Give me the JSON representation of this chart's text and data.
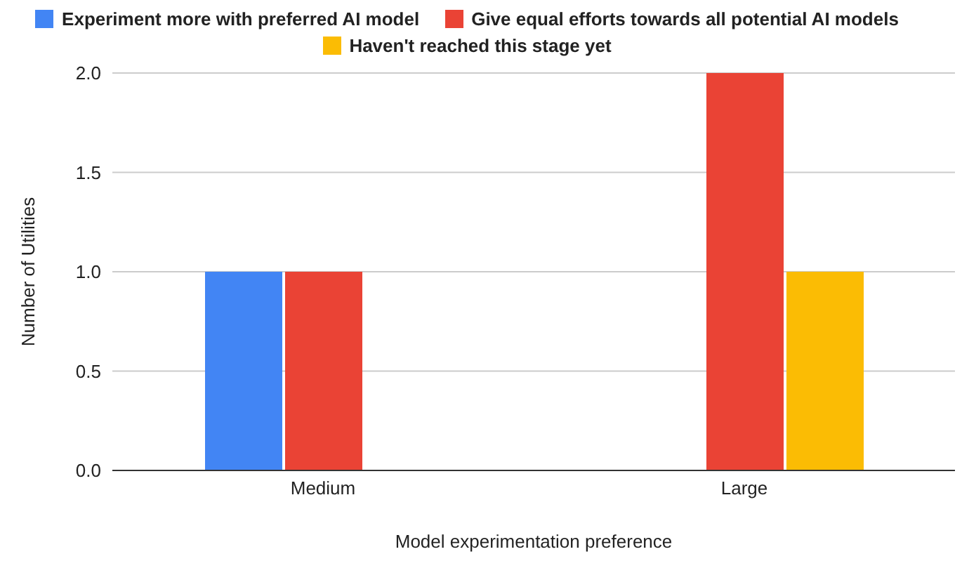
{
  "chart_data": {
    "type": "bar",
    "xlabel": "Model experimentation preference",
    "ylabel": "Number of Utilities",
    "categories": [
      "Medium",
      "Large"
    ],
    "series": [
      {
        "name": "Experiment more with preferred AI model",
        "color": "#4285f4",
        "values": [
          1,
          null
        ]
      },
      {
        "name": "Give equal efforts towards all potential AI models",
        "color": "#ea4335",
        "values": [
          1,
          2
        ]
      },
      {
        "name": "Haven't reached this stage yet",
        "color": "#fbbc04",
        "values": [
          null,
          1
        ]
      }
    ],
    "ylim": [
      0,
      2
    ],
    "yticks": [
      {
        "value": 0,
        "label": "0.0"
      },
      {
        "value": 0.5,
        "label": "0.5"
      },
      {
        "value": 1,
        "label": "1.0"
      },
      {
        "value": 1.5,
        "label": "1.5"
      },
      {
        "value": 2,
        "label": "2.0"
      }
    ],
    "grid": "y",
    "legend": "top"
  }
}
